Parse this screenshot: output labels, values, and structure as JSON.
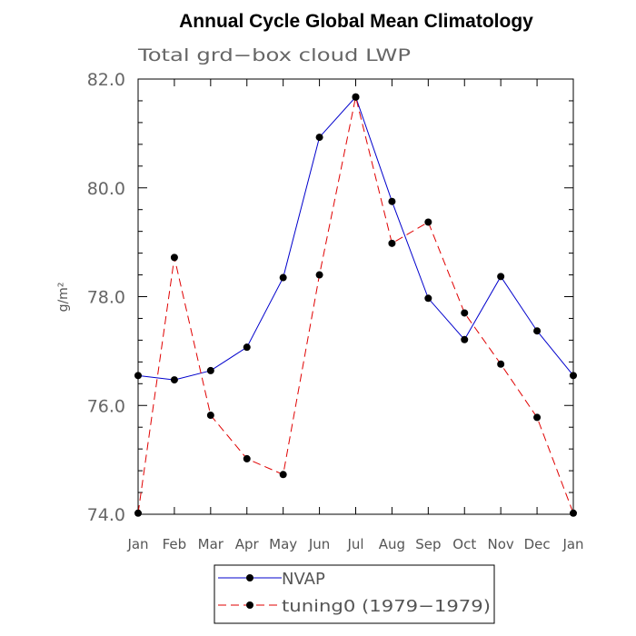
{
  "chart_data": {
    "type": "line",
    "title": "Annual Cycle Global Mean Climatology",
    "subtitle": "Total grd−box cloud LWP",
    "xlabel": "",
    "ylabel": "g/m²",
    "categories": [
      "Jan",
      "Feb",
      "Mar",
      "Apr",
      "May",
      "Jun",
      "Jul",
      "Aug",
      "Sep",
      "Oct",
      "Nov",
      "Dec",
      "Jan"
    ],
    "y_ticks": [
      "74.0",
      "76.0",
      "78.0",
      "80.0",
      "82.0"
    ],
    "ylim": [
      74.0,
      82.0
    ],
    "grid": false,
    "legend_position": "bottom",
    "series": [
      {
        "name": "NVAP",
        "color": "#0000cc",
        "dash": "solid",
        "values": [
          76.55,
          76.47,
          76.64,
          77.07,
          78.35,
          80.93,
          81.67,
          79.75,
          77.97,
          77.21,
          78.37,
          77.37,
          76.55
        ]
      },
      {
        "name": "tuning0 (1979−1979)",
        "color": "#e00000",
        "dash": "dashed",
        "values": [
          74.02,
          78.72,
          75.82,
          75.02,
          74.73,
          78.4,
          81.67,
          78.98,
          79.37,
          77.7,
          76.76,
          75.78,
          74.02
        ]
      }
    ]
  }
}
